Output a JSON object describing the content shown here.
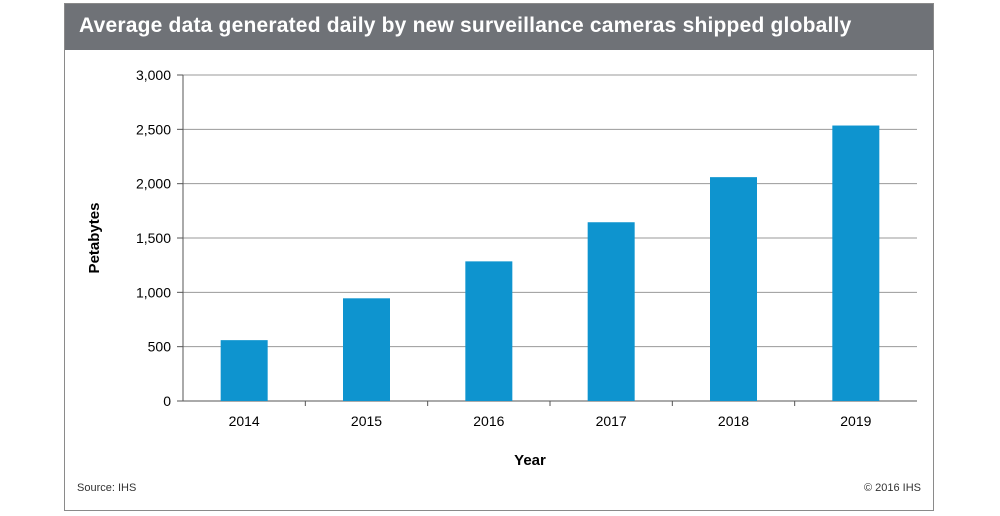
{
  "chart": {
    "title": "Average data generated daily by new surveillance cameras shipped globally",
    "source": "Source: IHS",
    "copyright": "© 2016 IHS"
  },
  "chart_data": {
    "type": "bar",
    "title": "Average data generated daily by new surveillance cameras shipped globally",
    "xlabel": "Year",
    "ylabel": "Petabytes",
    "categories": [
      "2014",
      "2015",
      "2016",
      "2017",
      "2018",
      "2019"
    ],
    "values": [
      560,
      945,
      1285,
      1645,
      2060,
      2535
    ],
    "ylim": [
      0,
      3000
    ],
    "yticks": [
      0,
      500,
      1000,
      1500,
      2000,
      2500,
      3000
    ],
    "ytick_labels": [
      "0",
      "500",
      "1,000",
      "1,500",
      "2,000",
      "2,500",
      "3,000"
    ],
    "grid": true,
    "legend": "none",
    "colors": {
      "bar": "#0e94cf",
      "grid": "#9a9a9a",
      "header": "#6f7277"
    }
  }
}
